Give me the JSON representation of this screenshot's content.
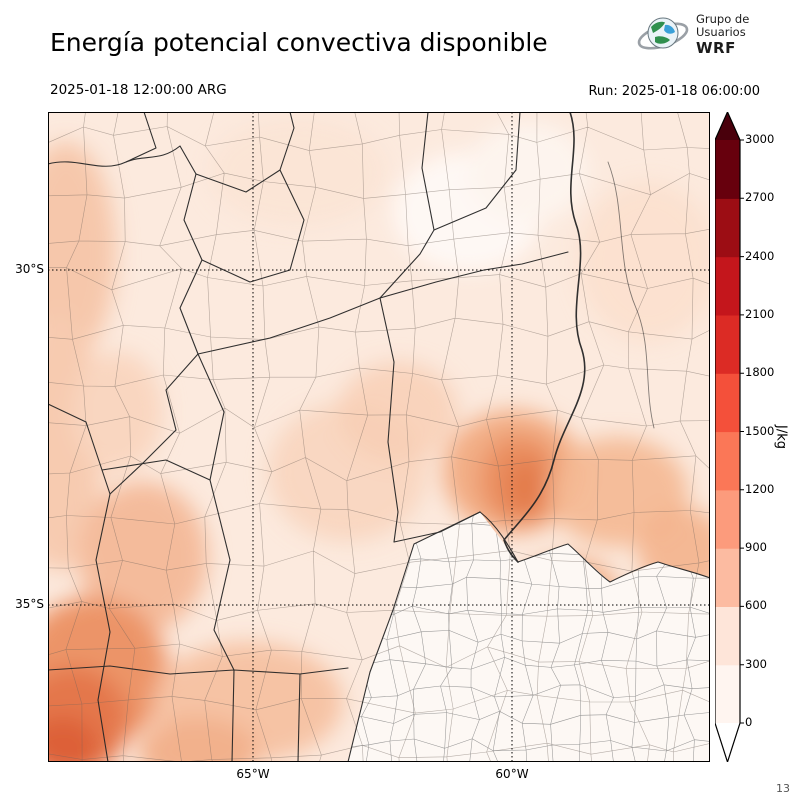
{
  "header": {
    "title": "Energía potencial convectiva disponible",
    "valid_time": "2025-01-18 12:00:00 ARG",
    "run_label": "Run: 2025-01-18 06:00:00"
  },
  "logo": {
    "line1": "Grupo de",
    "line2": "Usuarios",
    "line3": "WRF"
  },
  "map": {
    "lat_ticks": [
      "30°S",
      "35°S"
    ],
    "lon_ticks": [
      "65°W",
      "60°W"
    ],
    "frame_number": "13"
  },
  "colorbar": {
    "unit_label": "J/kg",
    "tick_labels": [
      "3000",
      "2700",
      "2400",
      "2100",
      "1800",
      "1500",
      "1200",
      "900",
      "600",
      "300",
      "0"
    ],
    "segment_colors_bottom_to_top": [
      "#fff5f0",
      "#fee5d9",
      "#fcbba1",
      "#fc9b7c",
      "#fb7757",
      "#f4503a",
      "#dc2b25",
      "#c4161c",
      "#9c0d14",
      "#67000d"
    ],
    "top_arrow_color": "#49000c",
    "bottom_arrow_color": "#ffffff"
  }
}
